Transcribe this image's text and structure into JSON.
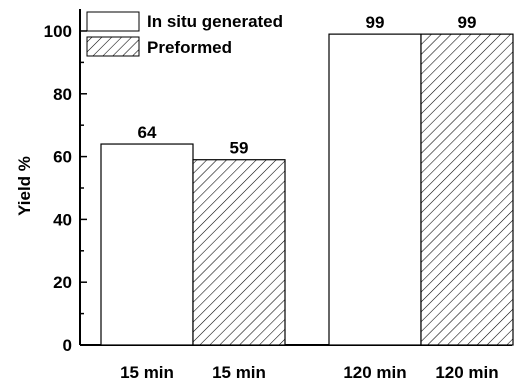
{
  "chart_data": {
    "type": "bar",
    "ylabel": "Yield %",
    "xlabel": "",
    "ylim": [
      0,
      107
    ],
    "yticks": [
      0,
      20,
      40,
      60,
      80,
      100
    ],
    "categories": [
      "15 min",
      "15 min",
      "120 min",
      "120 min"
    ],
    "series": [
      {
        "name": "In situ generated",
        "fill": "plain"
      },
      {
        "name": "Preformed",
        "fill": "hatched"
      }
    ],
    "bars": [
      {
        "category": "15 min",
        "series": "In situ generated",
        "value": 64,
        "label": "64"
      },
      {
        "category": "15 min",
        "series": "Preformed",
        "value": 59,
        "label": "59"
      },
      {
        "category": "120 min",
        "series": "In situ generated",
        "value": 99,
        "label": "99"
      },
      {
        "category": "120 min",
        "series": "Preformed",
        "value": 99,
        "label": "99"
      }
    ],
    "grid": false,
    "legend_position": "top-left",
    "colors": {
      "bar_stroke": "#000000",
      "plain_fill": "#ffffff",
      "hatch": "#000000"
    }
  }
}
